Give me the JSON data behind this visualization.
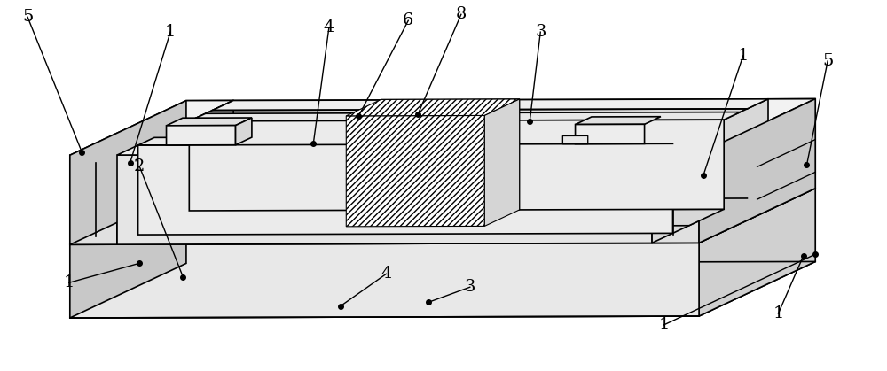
{
  "bg_color": "#ffffff",
  "line_color": "#000000",
  "line_width": 1.2,
  "fig_width": 10.0,
  "fig_height": 4.19,
  "dpi": 100,
  "label_fontsize": 14
}
